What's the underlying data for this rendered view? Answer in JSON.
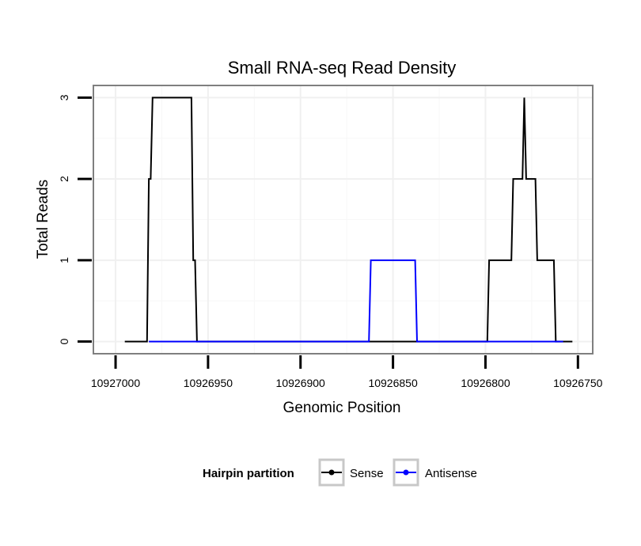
{
  "chart_data": {
    "type": "line",
    "title": "Small RNA-seq Read Density",
    "xlabel": "Genomic Position",
    "ylabel": "Total Reads",
    "x_reversed": true,
    "xlim": [
      10927012,
      10926742
    ],
    "ylim": [
      -0.15,
      3.15
    ],
    "x_ticks": [
      10927000,
      10926950,
      10926900,
      10926850,
      10926800,
      10926750
    ],
    "x_tick_labels": [
      "10927000",
      "10926950",
      "10926900",
      "10926850",
      "10926800",
      "10926750"
    ],
    "y_ticks": [
      0,
      1,
      2,
      3
    ],
    "y_tick_labels": [
      "0",
      "1",
      "2",
      "3"
    ],
    "grid": true,
    "legend_position": "bottom",
    "legend_title": "Hairpin partition",
    "series": [
      {
        "name": "Sense",
        "color": "#000000",
        "x": [
          10926995,
          10926983,
          10926982,
          10926981,
          10926980,
          10926979,
          10926959,
          10926958,
          10926957,
          10926956,
          10926955,
          10926799,
          10926798,
          10926786,
          10926785,
          10926780,
          10926779,
          10926778,
          10926777,
          10926773,
          10926772,
          10926763,
          10926762,
          10926753
        ],
        "y": [
          0,
          0,
          2,
          2,
          3,
          3,
          3,
          1,
          1,
          0,
          0,
          0,
          1,
          1,
          2,
          2,
          3,
          2,
          2,
          2,
          1,
          1,
          0,
          0
        ]
      },
      {
        "name": "Antisense",
        "color": "#0000ff",
        "x": [
          10926982,
          10926955,
          10926863,
          10926862,
          10926838,
          10926837,
          10926801,
          10926758
        ],
        "y": [
          0,
          0,
          0,
          1,
          1,
          0,
          0,
          0
        ]
      }
    ]
  }
}
